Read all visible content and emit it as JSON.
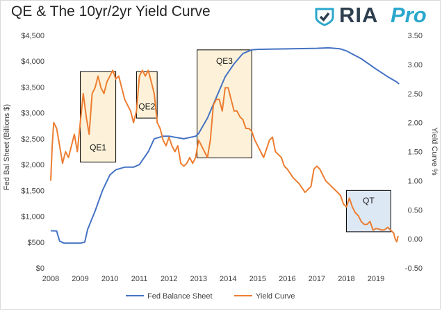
{
  "title": "QE & The 10yr/2yr Yield Curve",
  "brand": {
    "name": "RIA",
    "suffix": "Pro",
    "icon": "shield-checkmark-icon",
    "colors": {
      "name": "#2e3f4f",
      "suffix": "#2aa7cc"
    }
  },
  "chart_data": {
    "type": "line",
    "x_ticks": [
      "2008",
      "2009",
      "2010",
      "2011",
      "2012",
      "2013",
      "2014",
      "2015",
      "2016",
      "2017",
      "2018",
      "2019"
    ],
    "y_left": {
      "label": "Fed Bal Sheet (Billions $)",
      "range": [
        0,
        4500
      ],
      "ticks": [
        "$0",
        "$500",
        "$1,000",
        "$1,500",
        "$2,000",
        "$2,500",
        "$3,000",
        "$3,500",
        "$4,000",
        "$4,500"
      ]
    },
    "y_right": {
      "label": "Yield Curve %",
      "range": [
        -0.5,
        3.5
      ],
      "ticks": [
        "-0.50",
        "0.00",
        "0.50",
        "1.00",
        "1.50",
        "2.00",
        "2.50",
        "3.00",
        "3.50"
      ]
    },
    "series": [
      {
        "name": "Fed Balance Sheet",
        "axis": "left",
        "color": "#4472c4",
        "points": [
          [
            2008.0,
            720
          ],
          [
            2008.2,
            715
          ],
          [
            2008.3,
            520
          ],
          [
            2008.45,
            480
          ],
          [
            2008.7,
            480
          ],
          [
            2009.0,
            480
          ],
          [
            2009.15,
            500
          ],
          [
            2009.25,
            750
          ],
          [
            2009.5,
            1100
          ],
          [
            2009.75,
            1500
          ],
          [
            2010.0,
            1800
          ],
          [
            2010.2,
            1900
          ],
          [
            2010.5,
            1950
          ],
          [
            2010.8,
            1950
          ],
          [
            2011.0,
            2000
          ],
          [
            2011.3,
            2250
          ],
          [
            2011.5,
            2500
          ],
          [
            2011.8,
            2550
          ],
          [
            2012.0,
            2550
          ],
          [
            2012.5,
            2500
          ],
          [
            2012.9,
            2550
          ],
          [
            2013.0,
            2600
          ],
          [
            2013.3,
            2900
          ],
          [
            2013.6,
            3300
          ],
          [
            2013.9,
            3700
          ],
          [
            2014.2,
            3950
          ],
          [
            2014.5,
            4150
          ],
          [
            2014.8,
            4220
          ],
          [
            2015.0,
            4230
          ],
          [
            2016.0,
            4240
          ],
          [
            2017.0,
            4250
          ],
          [
            2017.4,
            4260
          ],
          [
            2017.8,
            4240
          ],
          [
            2018.0,
            4200
          ],
          [
            2018.5,
            4050
          ],
          [
            2019.0,
            3850
          ],
          [
            2019.4,
            3700
          ],
          [
            2019.7,
            3600
          ],
          [
            2019.78,
            3560
          ]
        ]
      },
      {
        "name": "Yield Curve",
        "axis": "right",
        "color": "#ed7d31",
        "points": [
          [
            2008.0,
            1.0
          ],
          [
            2008.05,
            1.6
          ],
          [
            2008.1,
            2.0
          ],
          [
            2008.2,
            1.9
          ],
          [
            2008.3,
            1.6
          ],
          [
            2008.4,
            1.3
          ],
          [
            2008.5,
            1.5
          ],
          [
            2008.6,
            1.4
          ],
          [
            2008.7,
            1.6
          ],
          [
            2008.8,
            1.8
          ],
          [
            2008.9,
            1.5
          ],
          [
            2009.0,
            2.0
          ],
          [
            2009.1,
            2.5
          ],
          [
            2009.2,
            2.1
          ],
          [
            2009.3,
            1.8
          ],
          [
            2009.4,
            2.5
          ],
          [
            2009.5,
            2.6
          ],
          [
            2009.6,
            2.8
          ],
          [
            2009.7,
            2.6
          ],
          [
            2009.8,
            2.5
          ],
          [
            2009.9,
            2.7
          ],
          [
            2010.0,
            2.8
          ],
          [
            2010.1,
            2.9
          ],
          [
            2010.2,
            2.75
          ],
          [
            2010.3,
            2.8
          ],
          [
            2010.4,
            2.6
          ],
          [
            2010.5,
            2.4
          ],
          [
            2010.6,
            2.3
          ],
          [
            2010.7,
            2.2
          ],
          [
            2010.8,
            2.0
          ],
          [
            2010.9,
            2.2
          ],
          [
            2011.0,
            2.8
          ],
          [
            2011.1,
            2.9
          ],
          [
            2011.2,
            2.8
          ],
          [
            2011.3,
            2.9
          ],
          [
            2011.4,
            2.7
          ],
          [
            2011.5,
            2.5
          ],
          [
            2011.6,
            2.0
          ],
          [
            2011.7,
            1.9
          ],
          [
            2011.8,
            1.7
          ],
          [
            2011.9,
            1.6
          ],
          [
            2012.0,
            1.75
          ],
          [
            2012.1,
            1.6
          ],
          [
            2012.2,
            1.5
          ],
          [
            2012.3,
            1.6
          ],
          [
            2012.4,
            1.3
          ],
          [
            2012.5,
            1.25
          ],
          [
            2012.6,
            1.3
          ],
          [
            2012.7,
            1.4
          ],
          [
            2012.8,
            1.3
          ],
          [
            2012.9,
            1.4
          ],
          [
            2013.0,
            1.7
          ],
          [
            2013.1,
            1.6
          ],
          [
            2013.2,
            1.5
          ],
          [
            2013.3,
            1.4
          ],
          [
            2013.4,
            1.7
          ],
          [
            2013.5,
            2.3
          ],
          [
            2013.6,
            2.4
          ],
          [
            2013.7,
            2.4
          ],
          [
            2013.8,
            2.2
          ],
          [
            2013.9,
            2.6
          ],
          [
            2014.0,
            2.6
          ],
          [
            2014.1,
            2.4
          ],
          [
            2014.2,
            2.2
          ],
          [
            2014.3,
            2.2
          ],
          [
            2014.4,
            2.1
          ],
          [
            2014.5,
            2.05
          ],
          [
            2014.6,
            1.9
          ],
          [
            2014.7,
            1.9
          ],
          [
            2014.8,
            1.85
          ],
          [
            2014.9,
            1.7
          ],
          [
            2015.0,
            1.6
          ],
          [
            2015.1,
            1.5
          ],
          [
            2015.2,
            1.4
          ],
          [
            2015.3,
            1.55
          ],
          [
            2015.4,
            1.7
          ],
          [
            2015.5,
            1.75
          ],
          [
            2015.6,
            1.5
          ],
          [
            2015.7,
            1.45
          ],
          [
            2015.8,
            1.4
          ],
          [
            2015.9,
            1.25
          ],
          [
            2016.0,
            1.2
          ],
          [
            2016.2,
            1.05
          ],
          [
            2016.4,
            0.95
          ],
          [
            2016.6,
            0.8
          ],
          [
            2016.7,
            0.85
          ],
          [
            2016.8,
            0.9
          ],
          [
            2016.9,
            1.2
          ],
          [
            2017.0,
            1.25
          ],
          [
            2017.1,
            1.2
          ],
          [
            2017.2,
            1.1
          ],
          [
            2017.3,
            1.0
          ],
          [
            2017.4,
            0.95
          ],
          [
            2017.5,
            0.9
          ],
          [
            2017.6,
            0.85
          ],
          [
            2017.7,
            0.8
          ],
          [
            2017.8,
            0.75
          ],
          [
            2017.9,
            0.6
          ],
          [
            2018.0,
            0.55
          ],
          [
            2018.1,
            0.7
          ],
          [
            2018.2,
            0.55
          ],
          [
            2018.3,
            0.45
          ],
          [
            2018.4,
            0.4
          ],
          [
            2018.5,
            0.3
          ],
          [
            2018.6,
            0.25
          ],
          [
            2018.7,
            0.25
          ],
          [
            2018.8,
            0.3
          ],
          [
            2018.9,
            0.15
          ],
          [
            2019.0,
            0.18
          ],
          [
            2019.1,
            0.17
          ],
          [
            2019.2,
            0.15
          ],
          [
            2019.3,
            0.16
          ],
          [
            2019.4,
            0.2
          ],
          [
            2019.5,
            0.15
          ],
          [
            2019.6,
            0.1
          ],
          [
            2019.65,
            0.0
          ],
          [
            2019.7,
            -0.05
          ],
          [
            2019.75,
            0.05
          ]
        ]
      }
    ],
    "annotations": [
      {
        "label": "QE1",
        "x0": 2009.0,
        "x1": 2010.2,
        "y0": 2050,
        "y1": 3800,
        "fill": "#fdf2d9"
      },
      {
        "label": "QE2",
        "x0": 2010.9,
        "x1": 2011.6,
        "y0": 2900,
        "y1": 3800,
        "fill": "#fdf2d9"
      },
      {
        "label": "QE3",
        "x0": 2012.95,
        "x1": 2014.8,
        "y0": 2130,
        "y1": 4220,
        "fill": "#fdf2d9"
      },
      {
        "label": "QT",
        "x0": 2018.0,
        "x1": 2019.5,
        "y0": 700,
        "y1": 1500,
        "fill": "#dde8f5"
      }
    ],
    "legend_position": "bottom",
    "grid": false
  }
}
